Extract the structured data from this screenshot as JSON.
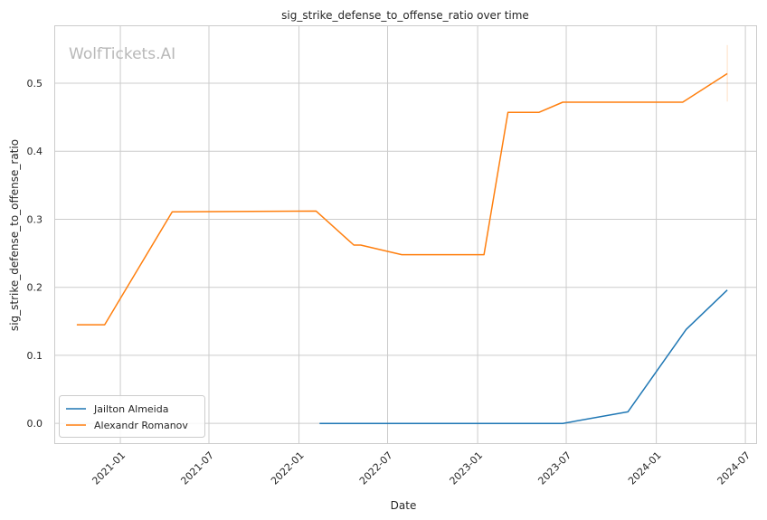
{
  "chart_data": {
    "type": "line",
    "title": "sig_strike_defense_to_offense_ratio over time",
    "xlabel": "Date",
    "ylabel": "sig_strike_defense_to_offense_ratio",
    "watermark": "WolfTickets.AI",
    "x_ticks": [
      "2021-01",
      "2021-07",
      "2022-01",
      "2022-07",
      "2023-01",
      "2023-07",
      "2024-01",
      "2024-07"
    ],
    "y_ticks": [
      "0.0",
      "0.1",
      "0.2",
      "0.3",
      "0.4",
      "0.5"
    ],
    "ylim": [
      -0.029,
      0.585
    ],
    "xlim": [
      "2020-08-19",
      "2024-07-23"
    ],
    "grid": true,
    "legend_position": "lower-left",
    "series": [
      {
        "name": "Jailton Almeida",
        "color": "#1f77b4",
        "points": [
          {
            "x": "2022-02-12",
            "y": 0.0
          },
          {
            "x": "2023-06-24",
            "y": 0.0
          },
          {
            "x": "2023-11-04",
            "y": 0.017
          },
          {
            "x": "2024-03-02",
            "y": 0.138
          },
          {
            "x": "2024-05-25",
            "y": 0.196
          }
        ]
      },
      {
        "name": "Alexandr Romanov",
        "color": "#ff7f0e",
        "points": [
          {
            "x": "2020-10-04",
            "y": 0.145
          },
          {
            "x": "2020-11-30",
            "y": 0.145
          },
          {
            "x": "2021-04-17",
            "y": 0.311
          },
          {
            "x": "2022-02-05",
            "y": 0.312
          },
          {
            "x": "2022-04-23",
            "y": 0.262
          },
          {
            "x": "2022-05-07",
            "y": 0.262
          },
          {
            "x": "2022-07-30",
            "y": 0.248
          },
          {
            "x": "2023-01-14",
            "y": 0.248
          },
          {
            "x": "2023-03-04",
            "y": 0.457
          },
          {
            "x": "2023-05-06",
            "y": 0.457
          },
          {
            "x": "2023-06-24",
            "y": 0.472
          },
          {
            "x": "2024-02-24",
            "y": 0.472
          },
          {
            "x": "2024-05-25",
            "y": 0.514
          }
        ],
        "error_bar": {
          "x": "2024-05-25",
          "low": 0.473,
          "high": 0.556
        }
      }
    ]
  }
}
